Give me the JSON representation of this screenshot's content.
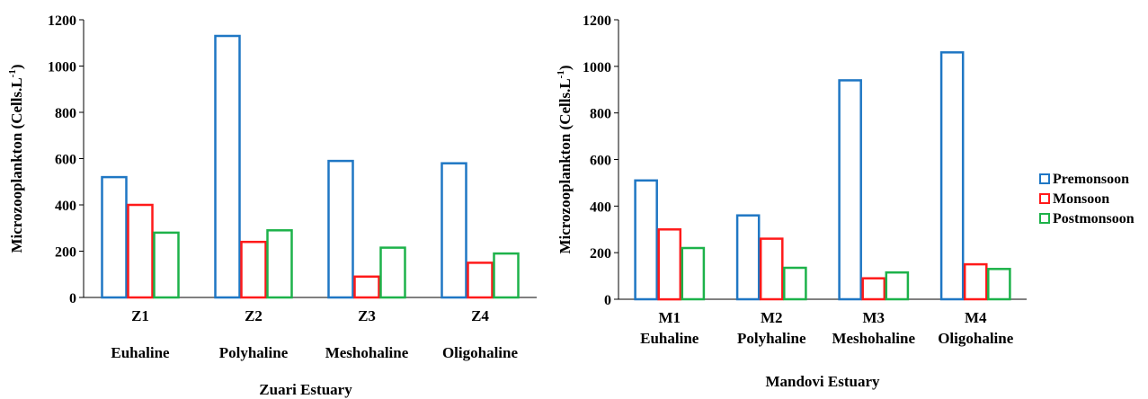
{
  "chart_data": [
    {
      "type": "bar",
      "categories": [
        "Z1",
        "Z2",
        "Z3",
        "Z4"
      ],
      "subcategories": [
        "Euhaline",
        "Polyhaline",
        "Meshohaline",
        "Oligohaline"
      ],
      "series": [
        {
          "name": "Premonsoon",
          "color": "#1f77c4",
          "values": [
            520,
            1130,
            590,
            580
          ]
        },
        {
          "name": "Monsoon",
          "color": "#ff1a1a",
          "values": [
            400,
            240,
            90,
            150
          ]
        },
        {
          "name": "Postmonsoon",
          "color": "#1db24a",
          "values": [
            280,
            290,
            215,
            190
          ]
        }
      ],
      "xlabel": "Zuari Estuary",
      "ylabel_main": "Microzooplankton (Cells.L",
      "ylabel_sup": "-1",
      "ylabel_end": ")",
      "ylim": [
        0,
        1200
      ],
      "yticks": [
        0,
        200,
        400,
        600,
        800,
        1000,
        1200
      ],
      "grid": false,
      "fill": "none"
    },
    {
      "type": "bar",
      "categories": [
        "M1",
        "M2",
        "M3",
        "M4"
      ],
      "subcategories": [
        "Euhaline",
        "Polyhaline",
        "Meshohaline",
        "Oligohaline"
      ],
      "series": [
        {
          "name": "Premonsoon",
          "color": "#1f77c4",
          "values": [
            510,
            360,
            940,
            1060
          ]
        },
        {
          "name": "Monsoon",
          "color": "#ff1a1a",
          "values": [
            300,
            260,
            90,
            150
          ]
        },
        {
          "name": "Postmonsoon",
          "color": "#1db24a",
          "values": [
            220,
            135,
            115,
            130
          ]
        }
      ],
      "xlabel": "Mandovi Estuary",
      "ylabel_main": "Microzooplankton (Cells.L",
      "ylabel_sup": "-1",
      "ylabel_end": ")",
      "ylim": [
        0,
        1200
      ],
      "yticks": [
        0,
        200,
        400,
        600,
        800,
        1000,
        1200
      ],
      "grid": false,
      "fill": "none"
    }
  ],
  "legend": {
    "placement": "right",
    "items": [
      {
        "label": "Premonsoon",
        "color": "#1f77c4"
      },
      {
        "label": "Monsoon",
        "color": "#ff1a1a"
      },
      {
        "label": "Postmonsoon",
        "color": "#1db24a"
      }
    ]
  }
}
